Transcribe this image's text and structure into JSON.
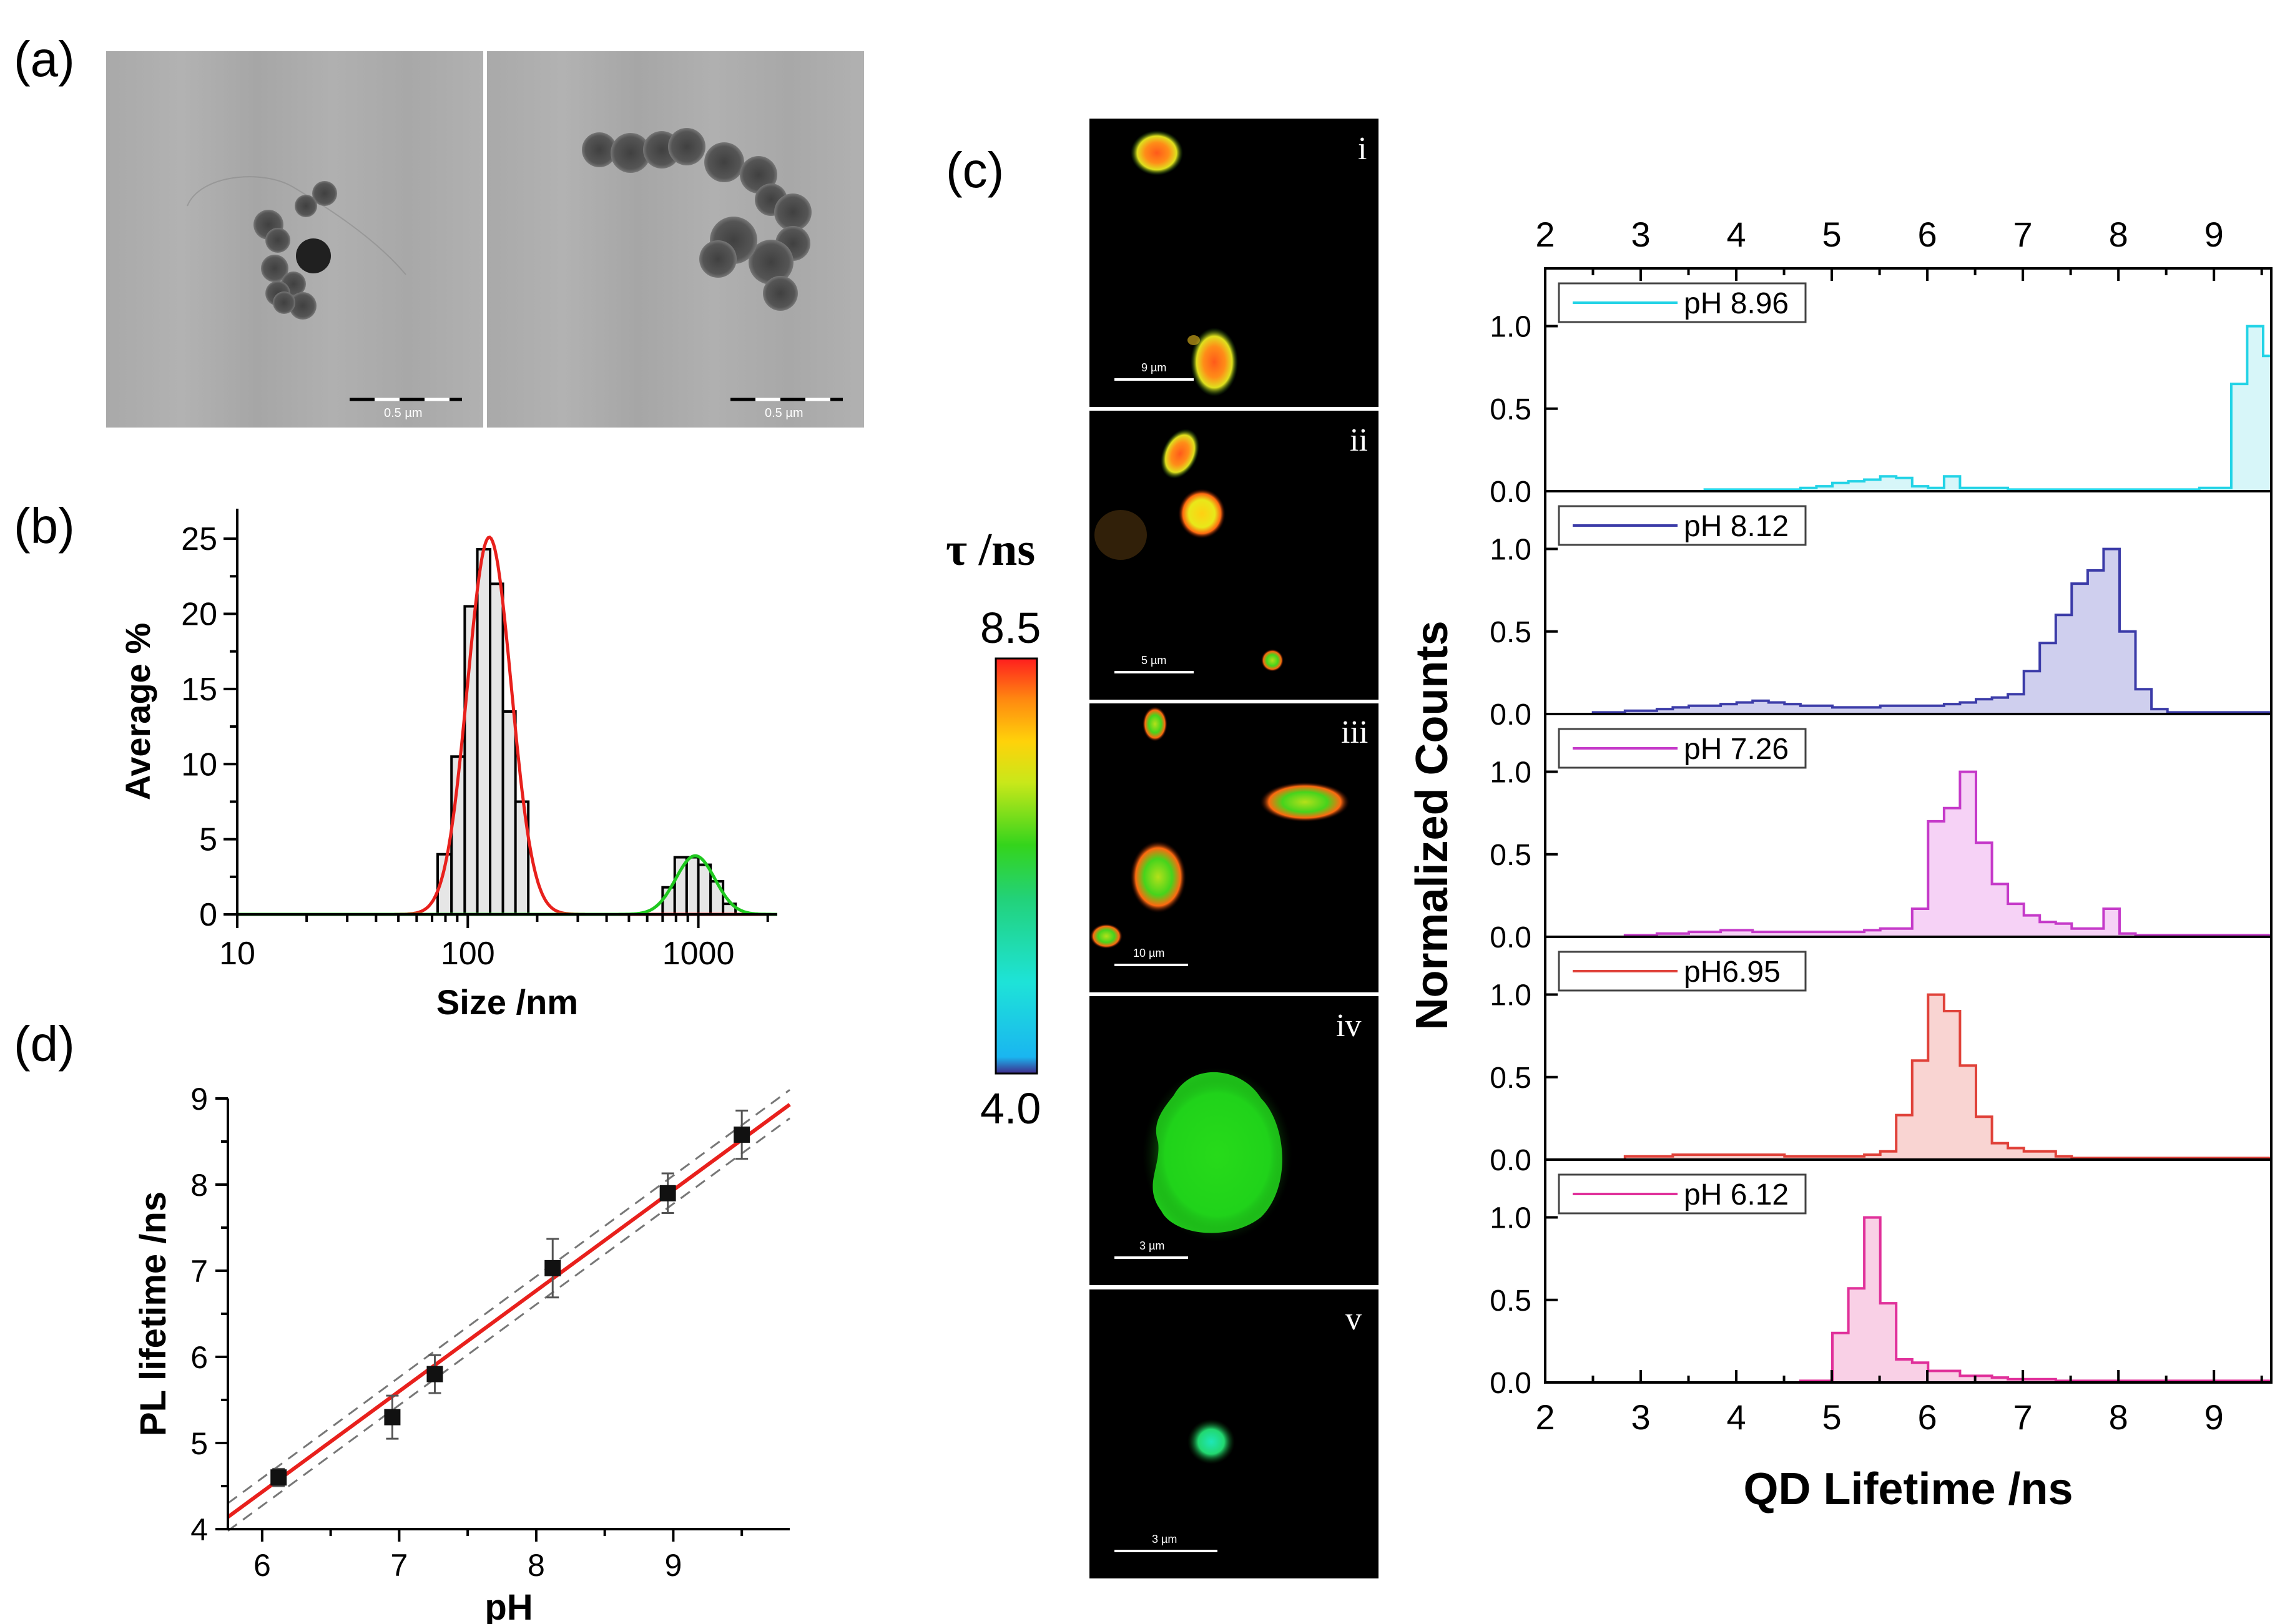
{
  "panel_labels": {
    "a": "(a)",
    "b": "(b)",
    "c": "(c)",
    "d": "(d)"
  },
  "panel_a": {
    "scale_labels": [
      "0.5 µm",
      "0.5 µm"
    ]
  },
  "colorbar": {
    "title": "τ /ns",
    "max_label": "8.5",
    "min_label": "4.0",
    "max": 8.5,
    "min": 4.0,
    "colors": [
      "#3f2a8a",
      "#1ab6f0",
      "#1ee3d8",
      "#22d27a",
      "#34d41c",
      "#c8e81a",
      "#ffd20a",
      "#ff8a10",
      "#ff1e1e"
    ]
  },
  "flim_images": [
    {
      "roman": "i",
      "scale": "9 µm"
    },
    {
      "roman": "ii",
      "scale": "5 µm"
    },
    {
      "roman": "iii",
      "scale": "10 µm"
    },
    {
      "roman": "iv",
      "scale": "3 µm"
    },
    {
      "roman": "v",
      "scale": "3 µm"
    }
  ],
  "chart_data": [
    {
      "id": "b",
      "type": "bar",
      "xlabel": "Size /nm",
      "ylabel": "Average %",
      "xscale": "log",
      "xlim": [
        10,
        2200
      ],
      "ylim": [
        0,
        27
      ],
      "xticks": [
        10,
        100,
        1000
      ],
      "xtick_labels": [
        "10",
        "100",
        "1000"
      ],
      "yticks": [
        0,
        5,
        10,
        15,
        20,
        25
      ],
      "ytick_labels": [
        "0",
        "5",
        "10",
        "15",
        "20",
        "25"
      ],
      "histogram_bin_edges": [
        74,
        85,
        97,
        110,
        125,
        142,
        161,
        183,
        700,
        790,
        890,
        1000,
        1130,
        1280,
        1450,
        1650
      ],
      "histogram_values": [
        4,
        10.5,
        20.5,
        24.3,
        22,
        13.5,
        7.5,
        0,
        1.8,
        3.8,
        3.8,
        3.3,
        2.2,
        0.7,
        0
      ],
      "fits": [
        {
          "color": "#e8201c",
          "peak_x": 124,
          "peak_y": 25.1,
          "sigma_log10": 0.095
        },
        {
          "color": "#1fc81f",
          "peak_x": 970,
          "peak_y": 3.9,
          "sigma_log10": 0.085
        }
      ]
    },
    {
      "id": "c",
      "type": "area",
      "xlabel": "QD Lifetime /ns",
      "ylabel": "Normalized Counts",
      "xlim": [
        2,
        9.6
      ],
      "xticks": [
        2,
        3,
        4,
        5,
        6,
        7,
        8,
        9
      ],
      "xtick_labels": [
        "2",
        "3",
        "4",
        "5",
        "6",
        "7",
        "8",
        "9"
      ],
      "ylim": [
        0,
        1.35
      ],
      "yticks": [
        0,
        0.5,
        1.0
      ],
      "ytick_labels": [
        "0.0",
        "0.5",
        "1.0"
      ],
      "bin_width": 0.167,
      "bin_start": 2.0,
      "series": [
        {
          "name": "pH 8.96",
          "color": "#22d3e6",
          "fill": "#d7f6f9",
          "values": [
            0,
            0,
            0,
            0,
            0,
            0,
            0,
            0,
            0,
            0,
            0.01,
            0.01,
            0.01,
            0.01,
            0.01,
            0.01,
            0.02,
            0.03,
            0.05,
            0.06,
            0.07,
            0.09,
            0.08,
            0.03,
            0.02,
            0.09,
            0.02,
            0.02,
            0.02,
            0.01,
            0.01,
            0.01,
            0.01,
            0.01,
            0.01,
            0.01,
            0.01,
            0.01,
            0.01,
            0.01,
            0.01,
            0.02,
            0.02,
            0.65,
            1.0,
            0.82,
            0.52,
            0.2,
            0.08,
            0.04,
            0.02,
            0.01,
            0.01,
            0.01,
            0.01,
            0.01
          ]
        },
        {
          "name": "pH 8.12",
          "color": "#3b3ba8",
          "fill": "#cfcfee",
          "values": [
            0,
            0,
            0,
            0.01,
            0.01,
            0.02,
            0.02,
            0.03,
            0.04,
            0.05,
            0.05,
            0.06,
            0.07,
            0.08,
            0.07,
            0.06,
            0.05,
            0.05,
            0.04,
            0.04,
            0.04,
            0.05,
            0.05,
            0.05,
            0.05,
            0.06,
            0.07,
            0.09,
            0.1,
            0.12,
            0.26,
            0.43,
            0.6,
            0.79,
            0.87,
            1.0,
            0.5,
            0.15,
            0.03,
            0.01,
            0.01,
            0.01,
            0.01,
            0.01,
            0.01,
            0.01,
            0.01,
            0.01,
            0.01,
            0.01,
            0.01,
            0.01,
            0.01,
            0.01,
            0.01,
            0.01
          ]
        },
        {
          "name": "pH 7.26",
          "color": "#c53ac9",
          "fill": "#f6d2f6",
          "values": [
            0,
            0,
            0,
            0,
            0,
            0.01,
            0.01,
            0.02,
            0.02,
            0.03,
            0.03,
            0.04,
            0.04,
            0.03,
            0.03,
            0.03,
            0.03,
            0.03,
            0.03,
            0.03,
            0.04,
            0.05,
            0.05,
            0.17,
            0.7,
            0.78,
            1.0,
            0.57,
            0.32,
            0.2,
            0.13,
            0.09,
            0.08,
            0.05,
            0.05,
            0.17,
            0.02,
            0.01,
            0.01,
            0.01,
            0.01,
            0.01,
            0.01,
            0.01,
            0.01,
            0.01,
            0.01,
            0.01,
            0.01,
            0.01,
            0.01,
            0.01,
            0.01,
            0.01,
            0.01,
            0.01
          ]
        },
        {
          "name": "pH6.95",
          "color": "#e0423a",
          "fill": "#f9d4d2",
          "values": [
            0,
            0,
            0,
            0,
            0,
            0.02,
            0.02,
            0.02,
            0.03,
            0.03,
            0.03,
            0.03,
            0.03,
            0.03,
            0.03,
            0.02,
            0.02,
            0.02,
            0.02,
            0.02,
            0.03,
            0.05,
            0.27,
            0.6,
            1.0,
            0.9,
            0.57,
            0.26,
            0.1,
            0.07,
            0.05,
            0.05,
            0.02,
            0.01,
            0.01,
            0.01,
            0.01,
            0.01,
            0.01,
            0.01,
            0.01,
            0.01,
            0.01,
            0.01,
            0.01,
            0.01,
            0.01,
            0.01,
            0.01,
            0.01,
            0.01,
            0.01,
            0.01,
            0.01,
            0.01,
            0.01
          ]
        },
        {
          "name": "pH 6.12",
          "color": "#e0309a",
          "fill": "#f9d0e6",
          "values": [
            0,
            0,
            0,
            0,
            0,
            0,
            0,
            0,
            0,
            0,
            0,
            0,
            0,
            0,
            0,
            0,
            0.01,
            0.01,
            0.3,
            0.57,
            1.0,
            0.48,
            0.14,
            0.12,
            0.07,
            0.07,
            0.04,
            0.04,
            0.03,
            0.02,
            0.02,
            0.02,
            0.01,
            0.01,
            0.01,
            0.01,
            0.01,
            0.01,
            0.01,
            0.01,
            0.01,
            0.01,
            0.01,
            0.01,
            0.01,
            0.01,
            0.01,
            0.01,
            0.01,
            0.01,
            0.01,
            0.01,
            0.01,
            0.01,
            0.01,
            0.01
          ]
        }
      ]
    },
    {
      "id": "d",
      "type": "scatter",
      "xlabel": "pH",
      "ylabel": "PL lifetime /ns",
      "xlim": [
        5.75,
        9.85
      ],
      "ylim": [
        4,
        9
      ],
      "xticks": [
        6,
        7,
        8,
        9
      ],
      "xtick_labels": [
        "6",
        "7",
        "8",
        "9"
      ],
      "yticks": [
        4,
        5,
        6,
        7,
        8,
        9
      ],
      "ytick_labels": [
        "4",
        "5",
        "6",
        "7",
        "8",
        "9"
      ],
      "points": [
        {
          "x": 6.12,
          "y": 4.6,
          "err": 0.1
        },
        {
          "x": 6.95,
          "y": 5.3,
          "err": 0.25
        },
        {
          "x": 7.26,
          "y": 5.8,
          "err": 0.22
        },
        {
          "x": 8.12,
          "y": 7.03,
          "err": 0.34
        },
        {
          "x": 8.96,
          "y": 7.9,
          "err": 0.23
        },
        {
          "x": 9.5,
          "y": 8.58,
          "err": 0.28
        }
      ],
      "fit_line": {
        "color": "#e8201c",
        "from": [
          5.75,
          4.14
        ],
        "to": [
          9.85,
          8.93
        ]
      },
      "confidence_lines": [
        {
          "from": [
            5.75,
            4.3
          ],
          "to": [
            9.85,
            9.1
          ]
        },
        {
          "from": [
            5.75,
            3.98
          ],
          "to": [
            9.85,
            8.77
          ]
        }
      ]
    }
  ]
}
